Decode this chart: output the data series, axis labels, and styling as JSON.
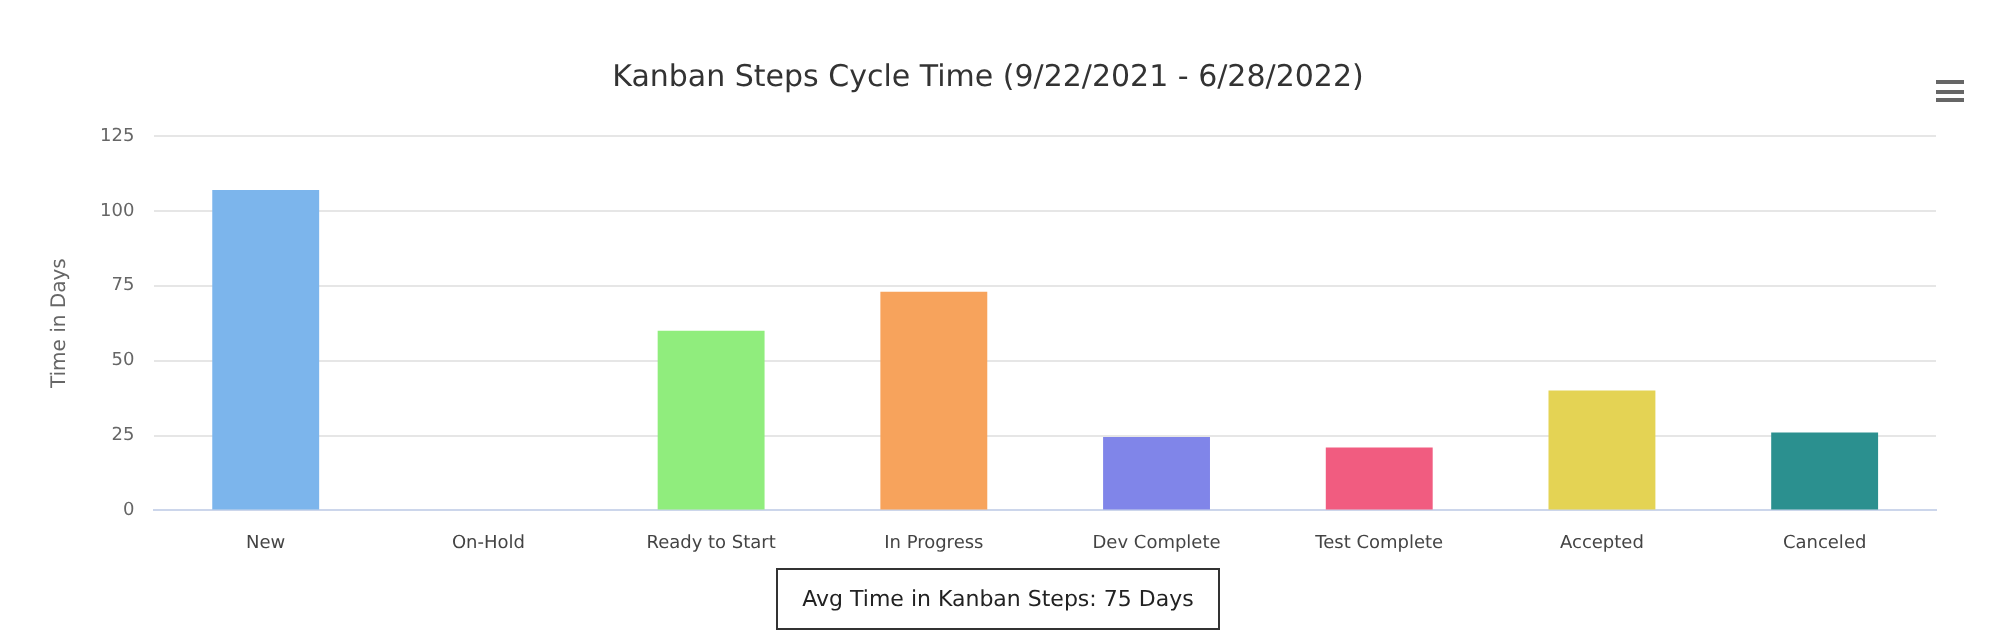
{
  "chart_data": {
    "type": "bar",
    "title": "Kanban Steps Cycle Time (9/22/2021 - 6/28/2022)",
    "ylabel": "Time in Days",
    "categories": [
      "New",
      "On-Hold",
      "Ready to Start",
      "In Progress",
      "Dev Complete",
      "Test Complete",
      "Accepted",
      "Canceled"
    ],
    "values": [
      107,
      0,
      60,
      73,
      24.5,
      21,
      40,
      26
    ],
    "colors": [
      "#7cb5ec",
      "#434348",
      "#90ed7d",
      "#f7a35c",
      "#8085e9",
      "#f15c80",
      "#e4d354",
      "#2b908f"
    ],
    "ylim": [
      0,
      125
    ],
    "yticks": [
      0,
      25,
      50,
      75,
      100,
      125
    ],
    "grid": "y",
    "legend": false,
    "annotations": [
      "Avg Time in Kanban Steps: 75 Days"
    ]
  }
}
